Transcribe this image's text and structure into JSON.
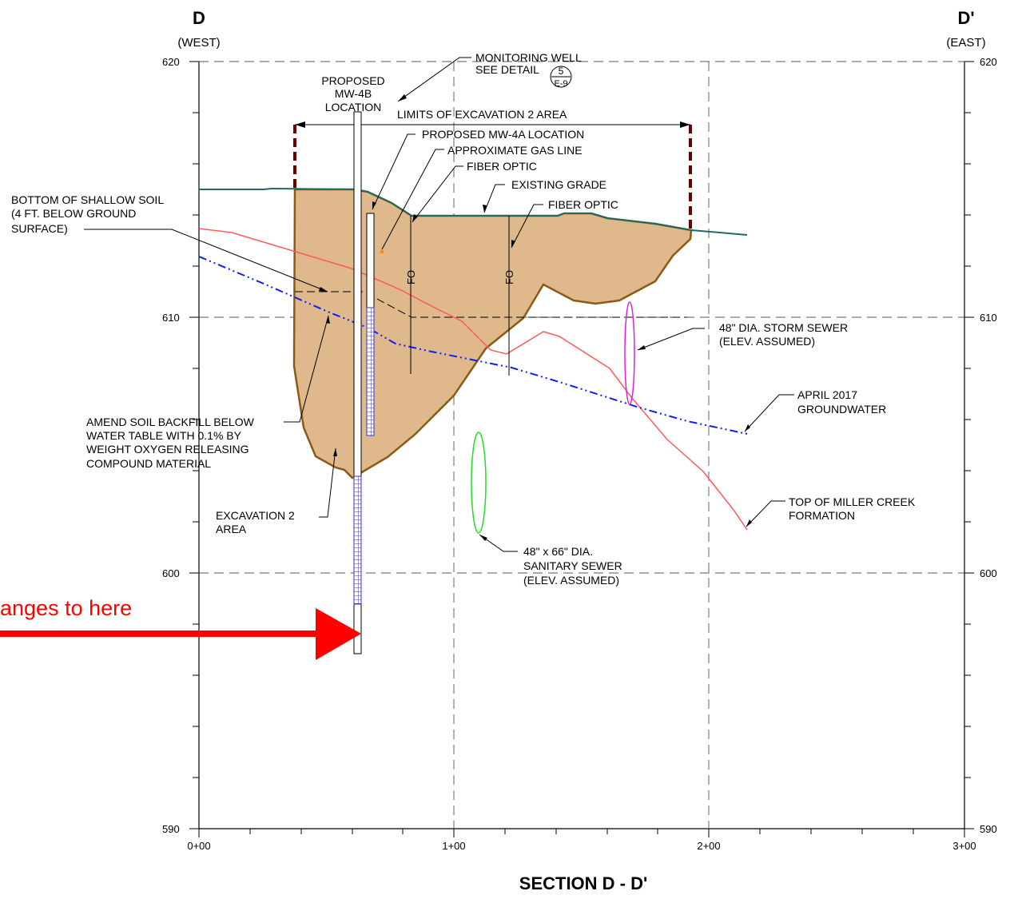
{
  "header": {
    "left_mark": "D",
    "left_dir": "(WEST)",
    "right_mark": "D'",
    "right_dir": "(EAST)"
  },
  "title": "SECTION  D - D'",
  "axes": {
    "y_ticks": [
      "620",
      "610",
      "600",
      "590"
    ],
    "x_ticks": [
      "0+00",
      "1+00",
      "2+00",
      "3+00"
    ]
  },
  "labels": {
    "monitoring_well": [
      "MONITORING WELL",
      "SEE DETAIL"
    ],
    "detail_ref": {
      "num": "5",
      "sheet": "E-9"
    },
    "proposed_mw4b": [
      "PROPOSED",
      "MW-4B",
      "LOCATION"
    ],
    "limits": "LIMITS OF EXCAVATION 2 AREA",
    "proposed_mw4a": "PROPOSED MW-4A LOCATION",
    "gas_line": "APPROXIMATE GAS LINE",
    "fiber_optic_1": "FIBER OPTIC",
    "existing_grade": "EXISTING GRADE",
    "fiber_optic_2": "FIBER OPTIC",
    "shallow_soil": [
      "BOTTOM OF SHALLOW SOIL",
      "(4 FT. BELOW GROUND",
      "SURFACE)"
    ],
    "fo": "FO",
    "storm_sewer": [
      "48\" DIA.  STORM  SEWER",
      "(ELEV.  ASSUMED)"
    ],
    "groundwater": [
      "APRIL 2017",
      "GROUNDWATER"
    ],
    "amend_soil": [
      "AMEND SOIL BACKFILL BELOW",
      "WATER TABLE WITH 0.1% BY",
      "WEIGHT OXYGEN RELEASING",
      "COMPOUND MATERIAL"
    ],
    "excavation": [
      "EXCAVATION 2",
      "AREA"
    ],
    "sanitary_sewer": [
      "48\" x 66\"  DIA.",
      "SANITARY  SEWER",
      "(ELEV.  ASSUMED)"
    ],
    "miller_creek": [
      "TOP OF MILLER CREEK",
      "FORMATION"
    ],
    "red_annotation": "anges to here"
  },
  "colors": {
    "grade": "#1e6b63",
    "excavation_fill": "#dfb98b",
    "excavation_edge": "#8b5a14",
    "limits": "#6b0000",
    "bedrock": "#ff5a5a",
    "groundwater": "#0a1fff",
    "storm": "#e020e0",
    "sanitary": "#22dd22",
    "screen": "#3333cc",
    "arrow": "#ff0000"
  }
}
